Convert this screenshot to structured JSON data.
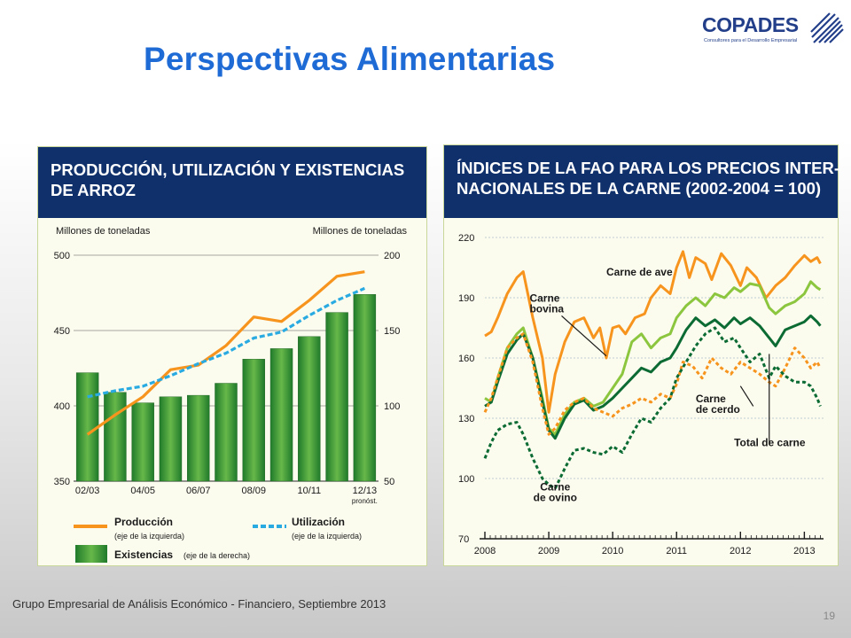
{
  "slide": {
    "title": "Perspectivas Alimentarias",
    "footer": "Grupo Empresarial de Análisis Económico - Financiero, Septiembre 2013",
    "page_number": "19"
  },
  "logo": {
    "name": "COPADES",
    "tagline": "Consultores para el Desarrollo Empresarial",
    "color": "#233f8a"
  },
  "colors": {
    "title": "#1f6bd6",
    "panel_header": "#10306b",
    "orange": "#f7941d",
    "dashed_blue": "#29abe2",
    "bar_green": "#2e8b2e",
    "dark_green": "#0b6b33",
    "light_green": "#8cc63f"
  },
  "chart_data": [
    {
      "type": "bar",
      "title_lines": [
        "PRODUCCIÓN, UTILIZACIÓN Y EXISTENCIAS",
        "DE ARROZ"
      ],
      "ylabel_left": "Millones de toneladas",
      "ylabel_right": "Millones de toneladas",
      "ylim_left": [
        350,
        500
      ],
      "ylim_right": [
        50,
        200
      ],
      "yticks_left": [
        "500",
        "450",
        "400",
        "350"
      ],
      "yticks_right": [
        "200",
        "150",
        "100",
        "50"
      ],
      "categories": [
        "02/03",
        "03/04",
        "04/05",
        "05/06",
        "06/07",
        "07/08",
        "08/09",
        "09/10",
        "10/11",
        "11/12",
        "12/13"
      ],
      "xtick_labels": [
        "02/03",
        "04/05",
        "06/07",
        "08/09",
        "10/11",
        "12/13"
      ],
      "forecast_label": "pronóst.",
      "series": [
        {
          "name": "Existencias",
          "note": "(eje de la derecha)",
          "kind": "bar",
          "axis": "right",
          "values": [
            122,
            109,
            102,
            106,
            107,
            115,
            131,
            138,
            146,
            162,
            174
          ]
        },
        {
          "name": "Producción",
          "note": "(eje de la izquierda)",
          "kind": "line",
          "axis": "left",
          "values": [
            381,
            394,
            406,
            424,
            427,
            440,
            459,
            456,
            470,
            486,
            489
          ]
        },
        {
          "name": "Utilización",
          "note": "(eje de la izquierda)",
          "kind": "dashed-line",
          "axis": "left",
          "values": [
            406,
            410,
            413,
            420,
            428,
            435,
            445,
            449,
            460,
            470,
            478
          ]
        }
      ]
    },
    {
      "type": "line",
      "title_lines": [
        "ÍNDICES DE LA FAO PARA LOS PRECIOS INTER-",
        "NACIONALES DE LA CARNE (2002-2004 = 100)"
      ],
      "ylim": [
        70,
        220
      ],
      "yticks": [
        220,
        190,
        160,
        130,
        100,
        70
      ],
      "xlim": [
        2008,
        2013.3
      ],
      "xticks": [
        "2008",
        "2009",
        "2010",
        "2011",
        "2012",
        "2013"
      ],
      "series": [
        {
          "name": "Carne de ave",
          "label_lines": [
            "Carne de ave"
          ],
          "style": "solid-orange",
          "x": [
            2008,
            2008.1,
            2008.2,
            2008.35,
            2008.5,
            2008.6,
            2008.75,
            2008.9,
            2009.0,
            2009.1,
            2009.25,
            2009.4,
            2009.55,
            2009.7,
            2009.8,
            2009.9,
            2010.0,
            2010.1,
            2010.2,
            2010.35,
            2010.5,
            2010.6,
            2010.75,
            2010.9,
            2011.0,
            2011.1,
            2011.2,
            2011.3,
            2011.45,
            2011.55,
            2011.7,
            2011.85,
            2012.0,
            2012.1,
            2012.25,
            2012.4,
            2012.55,
            2012.7,
            2012.85,
            2013.0,
            2013.1,
            2013.2,
            2013.25
          ],
          "y": [
            171,
            173,
            180,
            192,
            200,
            203,
            180,
            160,
            133,
            152,
            168,
            178,
            180,
            170,
            175,
            160,
            175,
            176,
            172,
            180,
            182,
            190,
            196,
            192,
            205,
            213,
            200,
            210,
            207,
            199,
            212,
            206,
            196,
            205,
            200,
            190,
            196,
            200,
            206,
            211,
            208,
            210,
            207
          ]
        },
        {
          "name": "Carne bovina",
          "label_lines": [
            "Carne",
            "bovina"
          ],
          "style": "solid-light-green",
          "x": [
            2008,
            2008.1,
            2008.2,
            2008.35,
            2008.5,
            2008.6,
            2008.75,
            2008.9,
            2009.0,
            2009.1,
            2009.25,
            2009.4,
            2009.55,
            2009.7,
            2009.85,
            2010.0,
            2010.15,
            2010.3,
            2010.45,
            2010.6,
            2010.75,
            2010.9,
            2011.0,
            2011.15,
            2011.3,
            2011.45,
            2011.6,
            2011.75,
            2011.9,
            2012.0,
            2012.15,
            2012.3,
            2012.45,
            2012.55,
            2012.7,
            2012.85,
            2013.0,
            2013.1,
            2013.2,
            2013.25
          ],
          "y": [
            140,
            138,
            150,
            165,
            172,
            175,
            160,
            140,
            125,
            122,
            132,
            138,
            140,
            136,
            138,
            145,
            152,
            168,
            172,
            165,
            170,
            172,
            180,
            186,
            190,
            186,
            192,
            190,
            195,
            193,
            197,
            196,
            185,
            182,
            186,
            188,
            192,
            198,
            195,
            194
          ]
        },
        {
          "name": "Total de carne",
          "label_lines": [
            "Total de carne"
          ],
          "style": "solid-dark-green",
          "x": [
            2008,
            2008.1,
            2008.2,
            2008.35,
            2008.5,
            2008.6,
            2008.75,
            2008.9,
            2009.0,
            2009.1,
            2009.25,
            2009.4,
            2009.55,
            2009.7,
            2009.85,
            2010.0,
            2010.15,
            2010.3,
            2010.45,
            2010.6,
            2010.75,
            2010.9,
            2011.0,
            2011.15,
            2011.3,
            2011.45,
            2011.6,
            2011.75,
            2011.9,
            2012.0,
            2012.15,
            2012.3,
            2012.45,
            2012.55,
            2012.7,
            2012.85,
            2013.0,
            2013.1,
            2013.2,
            2013.25
          ],
          "y": [
            136,
            138,
            148,
            162,
            169,
            172,
            160,
            138,
            124,
            120,
            130,
            137,
            139,
            134,
            136,
            140,
            145,
            150,
            155,
            153,
            158,
            160,
            165,
            174,
            180,
            176,
            179,
            175,
            180,
            177,
            180,
            176,
            170,
            166,
            174,
            176,
            178,
            181,
            178,
            176
          ]
        },
        {
          "name": "Carne de cerdo",
          "label_lines": [
            "Carne",
            "de cerdo"
          ],
          "style": "dashed-orange",
          "x": [
            2008,
            2008.1,
            2008.2,
            2008.35,
            2008.5,
            2008.6,
            2008.75,
            2008.9,
            2009.0,
            2009.1,
            2009.25,
            2009.4,
            2009.55,
            2009.7,
            2009.85,
            2010.0,
            2010.15,
            2010.3,
            2010.45,
            2010.6,
            2010.75,
            2010.9,
            2011.0,
            2011.1,
            2011.25,
            2011.4,
            2011.55,
            2011.7,
            2011.85,
            2012.0,
            2012.15,
            2012.3,
            2012.45,
            2012.55,
            2012.7,
            2012.85,
            2013.0,
            2013.1,
            2013.2,
            2013.25
          ],
          "y": [
            133,
            140,
            150,
            165,
            170,
            172,
            158,
            135,
            122,
            125,
            134,
            138,
            140,
            135,
            133,
            131,
            135,
            137,
            140,
            138,
            142,
            140,
            147,
            158,
            156,
            150,
            160,
            155,
            152,
            158,
            155,
            152,
            148,
            146,
            155,
            165,
            160,
            155,
            158,
            155
          ]
        },
        {
          "name": "Carne de ovino",
          "label_lines": [
            "Carne",
            "de ovino"
          ],
          "style": "dashed-dark-green",
          "x": [
            2008,
            2008.1,
            2008.2,
            2008.35,
            2008.5,
            2008.6,
            2008.75,
            2008.9,
            2009.0,
            2009.1,
            2009.25,
            2009.4,
            2009.55,
            2009.7,
            2009.85,
            2010.0,
            2010.15,
            2010.3,
            2010.45,
            2010.6,
            2010.75,
            2010.9,
            2011.0,
            2011.15,
            2011.3,
            2011.45,
            2011.6,
            2011.75,
            2011.9,
            2012.0,
            2012.15,
            2012.3,
            2012.45,
            2012.55,
            2012.7,
            2012.85,
            2013.0,
            2013.1,
            2013.2,
            2013.25
          ],
          "y": [
            110,
            118,
            124,
            127,
            128,
            122,
            110,
            100,
            97,
            95,
            105,
            114,
            115,
            113,
            112,
            116,
            113,
            122,
            130,
            128,
            135,
            140,
            150,
            158,
            166,
            172,
            175,
            168,
            170,
            165,
            158,
            162,
            150,
            156,
            151,
            148,
            148,
            146,
            140,
            136
          ]
        }
      ]
    }
  ]
}
